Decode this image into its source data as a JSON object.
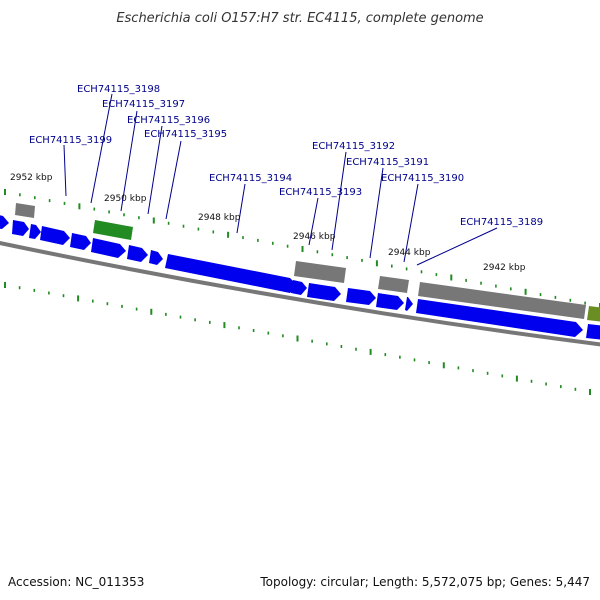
{
  "title": "Escherichia coli O157:H7 str. EC4115, complete genome",
  "accession": "Accession: NC_011353",
  "summary": "Topology: circular; Length: 5,572,075 bp; Genes: 5,447",
  "colors": {
    "cds": "#0000ee",
    "gene_gray": "#777777",
    "gene_green": "#228b22",
    "gene_olive": "#6b8e23",
    "label": "#00008b",
    "tick": "#228b22",
    "backbone": "#777777"
  },
  "kbp_labels": {
    "k2952": "2952 kbp",
    "k2950": "2950 kbp",
    "k2948": "2948 kbp",
    "k2946": "2946 kbp",
    "k2944": "2944 kbp",
    "k2942": "2942 kbp"
  },
  "gene_labels": {
    "g3199": "ECH74115_3199",
    "g3198": "ECH74115_3198",
    "g3197": "ECH74115_3197",
    "g3196": "ECH74115_3196",
    "g3195": "ECH74115_3195",
    "g3194": "ECH74115_3194",
    "g3193": "ECH74115_3193",
    "g3192": "ECH74115_3192",
    "g3191": "ECH74115_3191",
    "g3190": "ECH74115_3190",
    "g3189": "ECH74115_3189"
  }
}
